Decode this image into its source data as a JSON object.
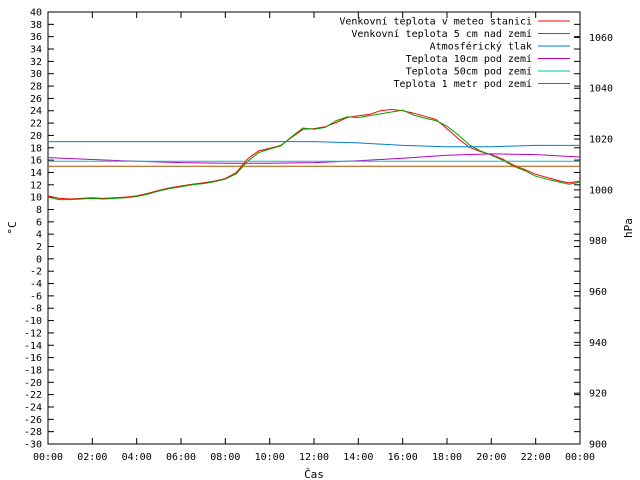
{
  "chart_data": {
    "type": "line",
    "xlabel": "Čas",
    "ylabel": "°C",
    "y2label": "hPa",
    "x_ticks": [
      "00:00",
      "02:00",
      "04:00",
      "06:00",
      "08:00",
      "10:00",
      "12:00",
      "14:00",
      "16:00",
      "18:00",
      "20:00",
      "22:00",
      "00:00"
    ],
    "xlim_hours": [
      0,
      24
    ],
    "ylim": [
      -30,
      40
    ],
    "y_ticks": [
      40,
      38,
      36,
      34,
      32,
      30,
      28,
      26,
      24,
      22,
      20,
      18,
      16,
      14,
      12,
      10,
      8,
      6,
      4,
      2,
      0,
      -2,
      -4,
      -6,
      -8,
      -10,
      -12,
      -14,
      -16,
      -18,
      -20,
      -22,
      -24,
      -26,
      -28,
      -30
    ],
    "y2lim": [
      900,
      1070
    ],
    "y2_ticks": [
      1060,
      1040,
      1020,
      1000,
      980,
      960,
      940,
      920,
      900
    ],
    "grid": false,
    "legend_position": "top-right",
    "series": [
      {
        "name": "Venkovní teplota v meteo stanici",
        "color": "#ff0000",
        "axis": "left",
        "x": [
          0,
          0.5,
          1,
          1.5,
          2,
          2.5,
          3,
          3.5,
          4,
          4.5,
          5,
          5.5,
          6,
          6.5,
          7,
          7.5,
          8,
          8.5,
          9,
          9.5,
          10,
          10.5,
          11,
          11.5,
          12,
          12.5,
          13,
          13.5,
          14,
          14.5,
          15,
          15.5,
          16,
          16.5,
          17,
          17.5,
          18,
          18.5,
          19,
          19.5,
          20,
          20.5,
          21,
          21.5,
          22,
          22.5,
          23,
          23.5,
          24
        ],
        "values": [
          10.2,
          9.8,
          9.7,
          9.8,
          9.9,
          9.8,
          9.9,
          10.0,
          10.2,
          10.6,
          11.1,
          11.5,
          11.8,
          12.1,
          12.3,
          12.6,
          13.0,
          14.0,
          16.2,
          17.5,
          17.9,
          18.4,
          19.7,
          21.0,
          21.1,
          21.4,
          22.1,
          22.9,
          23.2,
          23.4,
          24.0,
          24.2,
          24.0,
          23.6,
          23.1,
          22.6,
          21.1,
          19.5,
          18.1,
          17.4,
          16.9,
          16.2,
          15.2,
          14.5,
          13.7,
          13.2,
          12.7,
          12.3,
          12.6
        ]
      },
      {
        "name": "Venkovní teplota 5 cm nad zemí",
        "color": "#00a000",
        "axis": "left",
        "x": [
          0,
          0.5,
          1,
          1.5,
          2,
          2.5,
          3,
          3.5,
          4,
          4.5,
          5,
          5.5,
          6,
          6.5,
          7,
          7.5,
          8,
          8.5,
          9,
          9.5,
          10,
          10.5,
          11,
          11.5,
          12,
          12.5,
          13,
          13.5,
          14,
          14.5,
          15,
          15.5,
          16,
          16.5,
          17,
          17.5,
          18,
          18.5,
          19,
          19.5,
          20,
          20.5,
          21,
          21.5,
          22,
          22.5,
          23,
          23.5,
          24
        ],
        "values": [
          10.0,
          9.6,
          9.6,
          9.7,
          9.8,
          9.7,
          9.8,
          9.9,
          10.1,
          10.5,
          11.0,
          11.4,
          11.7,
          12.0,
          12.2,
          12.5,
          12.9,
          13.8,
          15.8,
          17.2,
          17.8,
          18.3,
          19.8,
          21.2,
          21.0,
          21.3,
          22.4,
          23.0,
          22.9,
          23.2,
          23.5,
          23.8,
          24.1,
          23.3,
          22.8,
          22.4,
          21.5,
          20.1,
          18.5,
          17.5,
          16.8,
          16.0,
          15.0,
          14.3,
          13.4,
          12.9,
          12.5,
          12.1,
          12.4
        ]
      },
      {
        "name": "Atmosférický tlak",
        "color": "#0080d0",
        "axis": "right",
        "x": [
          0,
          2,
          4,
          6,
          8,
          10,
          12,
          14,
          16,
          18,
          20,
          22,
          24
        ],
        "values": [
          1019,
          1019,
          1019,
          1019,
          1019,
          1019,
          1019,
          1018.5,
          1017.5,
          1017,
          1017,
          1017.5,
          1017.5
        ]
      },
      {
        "name": "Teplota 10cm pod zemí",
        "color": "#c000c0",
        "axis": "left",
        "x": [
          0,
          2,
          4,
          6,
          8,
          10,
          12,
          14,
          16,
          18,
          20,
          22,
          24
        ],
        "values": [
          16.4,
          16.1,
          15.8,
          15.6,
          15.5,
          15.5,
          15.6,
          15.9,
          16.3,
          16.8,
          17.0,
          16.9,
          16.5
        ]
      },
      {
        "name": "Teplota 50cm pod zemí",
        "color": "#00c0c0",
        "axis": "left",
        "x": [
          0,
          24
        ],
        "values": [
          15.8,
          15.8
        ]
      },
      {
        "name": "Teplota 1 metr pod zemí",
        "color": "#b05000",
        "axis": "left",
        "x": [
          0,
          24
        ],
        "values": [
          15.0,
          15.0
        ]
      }
    ]
  }
}
